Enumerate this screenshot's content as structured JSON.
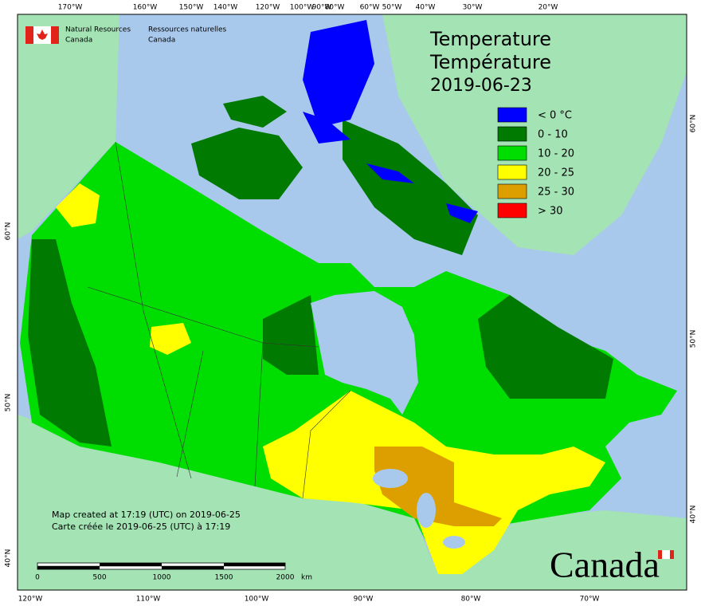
{
  "header": {
    "org_en": [
      "Natural Resources",
      "Canada"
    ],
    "org_fr": [
      "Ressources naturelles",
      "Canada"
    ]
  },
  "title": [
    "Temperature",
    "Température",
    "2019-06-23"
  ],
  "legend": [
    {
      "label": "< 0 °C",
      "color": "#0000ff"
    },
    {
      "label": "0 - 10",
      "color": "#007a00"
    },
    {
      "label": "10 - 20",
      "color": "#00dd00"
    },
    {
      "label": "20 - 25",
      "color": "#ffff00"
    },
    {
      "label": "25 - 30",
      "color": "#dd9f00"
    },
    {
      "label": "> 30",
      "color": "#ff0000"
    }
  ],
  "footer": [
    "Map created at 17:19 (UTC) on 2019-06-25",
    "Carte créée le 2019-06-25 (UTC) à 17:19"
  ],
  "scale_bar": {
    "labels": [
      "0",
      "500",
      "1000",
      "1500",
      "2000"
    ],
    "unit": "km"
  },
  "graticule": {
    "top": [
      "170°W",
      "160°W",
      "150°W",
      "140°W",
      "120°W",
      "100°W",
      "90°W",
      "80°W",
      "60°W",
      "50°W",
      "40°W",
      "30°W",
      "20°W"
    ],
    "bottom": [
      "120°W",
      "110°W",
      "100°W",
      "90°W",
      "80°W",
      "70°W"
    ],
    "left": [
      "60°N",
      "50°N",
      "40°N"
    ],
    "right": [
      "60°N",
      "50°N",
      "40°N"
    ]
  },
  "wordmark": "Canada"
}
